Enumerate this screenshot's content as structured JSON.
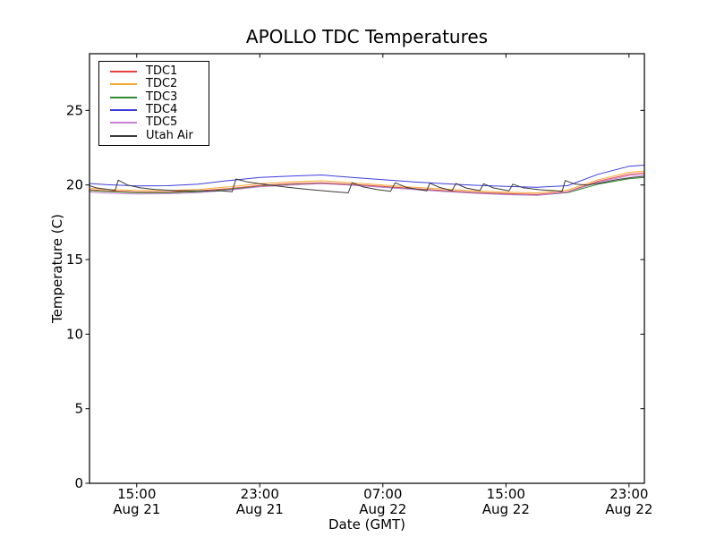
{
  "figure": {
    "title": "APOLLO TDC Temperatures",
    "xlabel": "Date (GMT)",
    "ylabel": "Temperature (C)",
    "background_color": "#ffffff",
    "axis_color": "#000000"
  },
  "chart_data": {
    "type": "line",
    "title": "APOLLO TDC Temperatures",
    "xlabel": "Date (GMT)",
    "ylabel": "Temperature (C)",
    "grid": false,
    "legend_position": "upper left",
    "x_unit": "hours since Aug 21 00:00 GMT",
    "xlim": [
      11.93,
      48.0
    ],
    "ylim": [
      0,
      28.8
    ],
    "y_ticks": [
      0,
      5,
      10,
      15,
      20,
      25
    ],
    "x_ticks": {
      "positions": [
        15,
        23,
        31,
        39,
        47
      ],
      "time_labels": [
        "15:00",
        "23:00",
        "07:00",
        "15:00",
        "23:00"
      ],
      "date_labels": [
        "Aug 21",
        "Aug 21",
        "Aug 22",
        "Aug 22",
        "Aug 22"
      ]
    },
    "series": [
      {
        "name": "TDC1",
        "color": "#e84040",
        "x": [
          11.93,
          13,
          15,
          17,
          19,
          21,
          23,
          25,
          27,
          29,
          31,
          33,
          35,
          37,
          39,
          41,
          43,
          45,
          47,
          48
        ],
        "y": [
          19.68,
          19.61,
          19.53,
          19.53,
          19.6,
          19.76,
          19.96,
          20.08,
          20.15,
          20.04,
          19.9,
          19.76,
          19.62,
          19.5,
          19.42,
          19.37,
          19.55,
          20.25,
          20.72,
          20.8
        ]
      },
      {
        "name": "TDC2",
        "color": "#f5a832",
        "x": [
          11.93,
          13,
          15,
          17,
          19,
          21,
          23,
          25,
          27,
          29,
          31,
          33,
          35,
          37,
          39,
          41,
          43,
          45,
          47,
          48
        ],
        "y": [
          19.78,
          19.7,
          19.63,
          19.63,
          19.7,
          19.88,
          20.08,
          20.2,
          20.28,
          20.15,
          20.0,
          19.85,
          19.72,
          19.6,
          19.52,
          19.47,
          19.65,
          20.35,
          20.85,
          20.92
        ]
      },
      {
        "name": "TDC3",
        "color": "#2f8b2f",
        "x": [
          11.93,
          13,
          15,
          17,
          19,
          21,
          23,
          25,
          27,
          29,
          31,
          33,
          35,
          37,
          39,
          41,
          43,
          45,
          47,
          48
        ],
        "y": [
          19.62,
          19.56,
          19.48,
          19.48,
          19.55,
          19.71,
          19.91,
          20.03,
          20.1,
          19.99,
          19.85,
          19.71,
          19.57,
          19.45,
          19.37,
          19.31,
          19.48,
          20.05,
          20.42,
          20.5
        ]
      },
      {
        "name": "TDC4",
        "color": "#3c3cdc",
        "x": [
          11.93,
          13,
          15,
          17,
          19,
          21,
          23,
          25,
          27,
          29,
          31,
          33,
          35,
          37,
          39,
          41,
          43,
          45,
          47,
          48
        ],
        "y": [
          20.1,
          20.02,
          19.93,
          19.95,
          20.05,
          20.3,
          20.5,
          20.6,
          20.67,
          20.5,
          20.35,
          20.2,
          20.08,
          19.98,
          19.9,
          19.85,
          19.95,
          20.72,
          21.25,
          21.33
        ]
      },
      {
        "name": "TDC5",
        "color": "#c87fd6",
        "x": [
          11.93,
          13,
          15,
          17,
          19,
          21,
          23,
          25,
          27,
          29,
          31,
          33,
          35,
          37,
          39,
          41,
          43,
          45,
          47,
          48
        ],
        "y": [
          19.52,
          19.46,
          19.4,
          19.41,
          19.48,
          19.65,
          19.87,
          20.0,
          20.08,
          19.98,
          19.84,
          19.7,
          19.56,
          19.44,
          19.35,
          19.3,
          19.52,
          20.18,
          20.62,
          20.68
        ]
      },
      {
        "name": "Utah Air",
        "color": "#3a3a3a",
        "x": [
          11.93,
          12.4,
          13.3,
          13.6,
          13.8,
          14.4,
          15.2,
          16.2,
          17.5,
          19.0,
          20.5,
          21.2,
          21.45,
          22.2,
          23.2,
          24.2,
          25.2,
          26.2,
          27.2,
          28.2,
          28.75,
          29.0,
          29.7,
          30.6,
          31.5,
          31.8,
          32.5,
          33.5,
          33.85,
          34.05,
          34.7,
          35.5,
          35.75,
          36.4,
          37.3,
          37.55,
          38.2,
          39.2,
          39.45,
          40.1,
          41.2,
          42.3,
          42.65,
          42.85,
          43.5,
          44.3,
          45.2,
          46.2,
          47.2,
          48.0
        ],
        "y": [
          19.95,
          19.8,
          19.68,
          19.64,
          20.32,
          20.0,
          19.82,
          19.7,
          19.62,
          19.6,
          19.6,
          19.55,
          20.4,
          20.2,
          20.05,
          19.92,
          19.8,
          19.7,
          19.6,
          19.52,
          19.47,
          20.15,
          19.88,
          19.7,
          19.58,
          20.15,
          19.85,
          19.66,
          19.6,
          20.12,
          19.83,
          19.62,
          20.1,
          19.8,
          19.62,
          20.08,
          19.8,
          19.6,
          20.05,
          19.82,
          19.68,
          19.6,
          19.56,
          20.3,
          20.05,
          20.0,
          20.15,
          20.35,
          20.5,
          20.58
        ]
      }
    ]
  }
}
